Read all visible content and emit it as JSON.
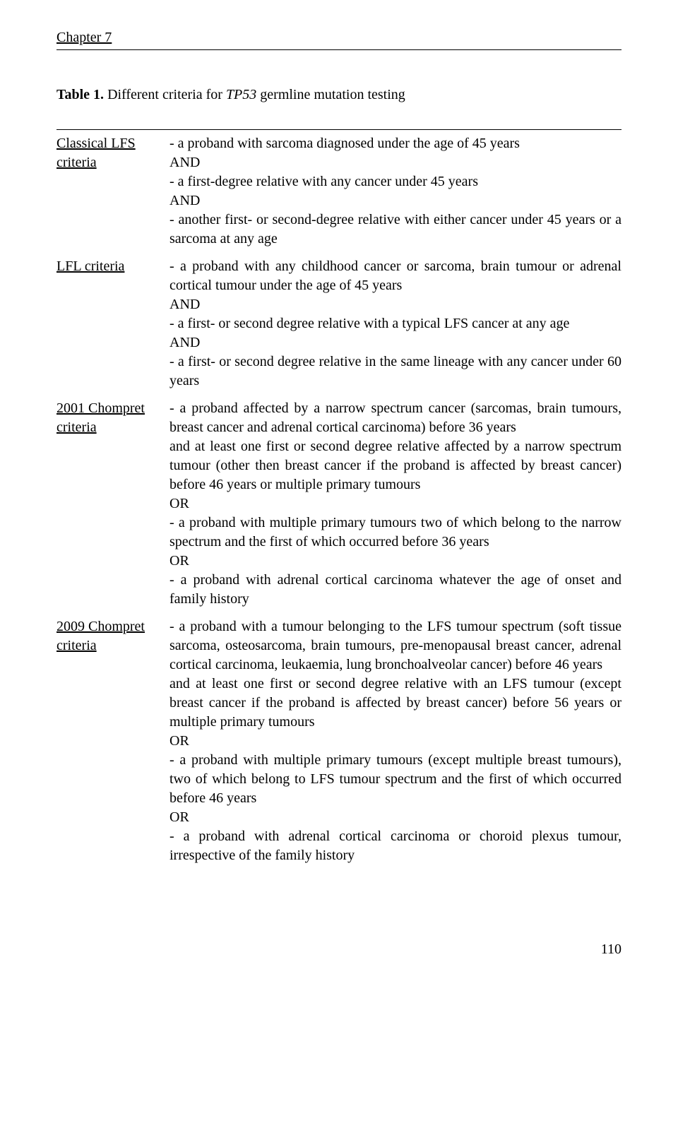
{
  "header": {
    "chapter": "Chapter 7"
  },
  "table": {
    "caption_prefix": "Table 1.",
    "caption_text": " Different criteria for ",
    "caption_gene": "TP53",
    "caption_suffix": " germline mutation testing",
    "rows": [
      {
        "label": "Classical LFS criteria",
        "lines": [
          "- a proband with sarcoma diagnosed under the age of 45 years",
          "AND",
          "- a first-degree relative with any cancer under 45 years",
          "AND",
          "- another first- or second-degree relative with either cancer under 45 years or a sarcoma at any age"
        ]
      },
      {
        "label": "LFL criteria",
        "lines": [
          "- a proband with any childhood cancer or sarcoma, brain tumour or adrenal cortical tumour under the age of 45 years",
          "AND",
          "- a first- or second degree relative with a typical LFS cancer at any age",
          "AND",
          "- a first- or second degree relative in the same lineage with any cancer under 60 years"
        ]
      },
      {
        "label": "2001 Chompret criteria",
        "lines": [
          "- a proband affected by a narrow spectrum cancer (sarcomas, brain tumours, breast cancer and adrenal cortical carcinoma) before 36 years",
          "and at least one first or second degree relative affected by a narrow spectrum tumour (other then breast cancer if the proband is affected by breast cancer) before 46 years or multiple primary tumours",
          "OR",
          "- a proband with multiple primary tumours two of which belong to the narrow spectrum and the first of which occurred before 36 years",
          "OR",
          "- a proband with adrenal cortical carcinoma whatever the age of onset and family history"
        ]
      },
      {
        "label": "2009 Chompret criteria",
        "lines": [
          "- a proband with a tumour belonging to the LFS tumour spectrum (soft tissue sarcoma, osteosarcoma, brain tumours, pre-menopausal breast cancer, adrenal cortical carcinoma, leukaemia, lung bronchoalveolar cancer) before 46 years",
          "and at least one first or second degree relative with an LFS tumour (except breast cancer if the proband is affected by breast cancer) before 56 years or multiple primary tumours",
          "OR",
          "- a proband with multiple primary tumours (except multiple breast tumours), two of which belong to LFS tumour spectrum and the first of which occurred before 46 years",
          "OR",
          "- a proband with adrenal cortical carcinoma or choroid plexus tumour, irrespective of the family history"
        ]
      }
    ]
  },
  "page_number": "110"
}
